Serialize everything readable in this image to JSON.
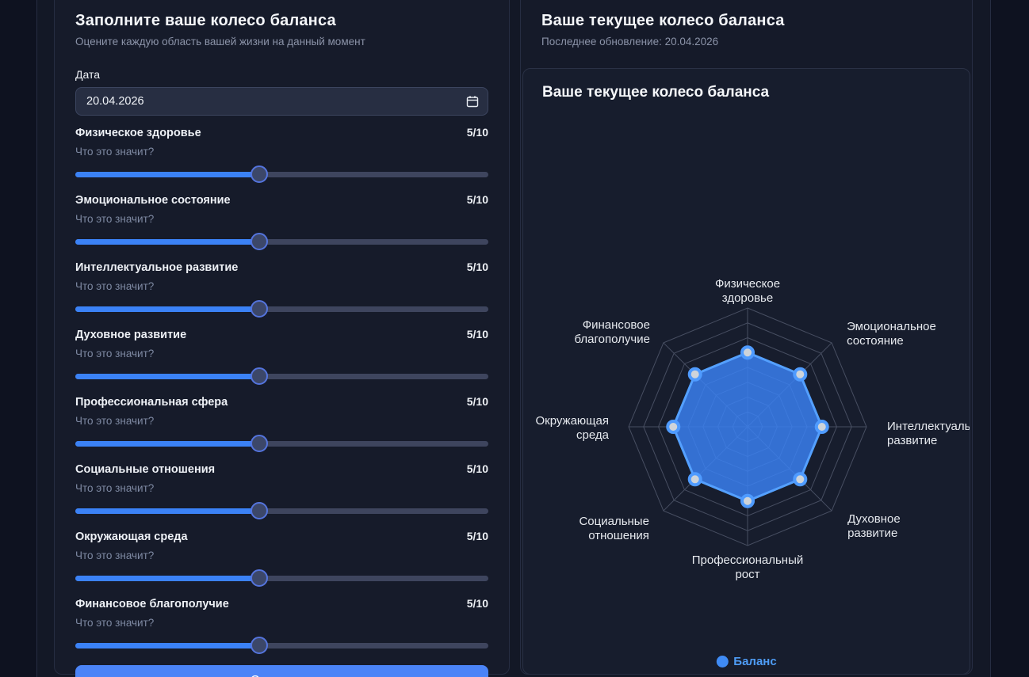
{
  "form": {
    "title": "Заполните ваше колесо баланса",
    "subtitle": "Оцените каждую область вашей жизни на данный момент",
    "date_label": "Дата",
    "date_value": "20.04.2026",
    "hint_label": "Что это значит?",
    "save_label": "Сохранить",
    "sliders": [
      {
        "label": "Физическое здоровье",
        "value": 5,
        "min": 1,
        "max": 10,
        "display": "5/10"
      },
      {
        "label": "Эмоциональное состояние",
        "value": 5,
        "min": 1,
        "max": 10,
        "display": "5/10"
      },
      {
        "label": "Интеллектуальное развитие",
        "value": 5,
        "min": 1,
        "max": 10,
        "display": "5/10"
      },
      {
        "label": "Духовное развитие",
        "value": 5,
        "min": 1,
        "max": 10,
        "display": "5/10"
      },
      {
        "label": "Профессиональная сфера",
        "value": 5,
        "min": 1,
        "max": 10,
        "display": "5/10"
      },
      {
        "label": "Социальные отношения",
        "value": 5,
        "min": 1,
        "max": 10,
        "display": "5/10"
      },
      {
        "label": "Окружающая среда",
        "value": 5,
        "min": 1,
        "max": 10,
        "display": "5/10"
      },
      {
        "label": "Финансовое благополучие",
        "value": 5,
        "min": 1,
        "max": 10,
        "display": "5/10"
      }
    ]
  },
  "panel": {
    "title": "Ваше текущее колесо баланса",
    "subtitle": "Последнее обновление: 20.04.2026",
    "chart_title": "Ваше текущее колесо баланса",
    "legend": "Баланс"
  },
  "chart_data": {
    "type": "radar",
    "title": "Ваше текущее колесо баланса",
    "categories": [
      "Физическое здоровье",
      "Эмоциональное состояние",
      "Интеллектуальное развитие",
      "Духовное развитие",
      "Профессиональный рост",
      "Социальные отношения",
      "Окружающая среда",
      "Финансовое благополучие"
    ],
    "series": [
      {
        "name": "Баланс",
        "values": [
          5,
          5,
          5,
          5,
          5,
          5,
          5,
          5
        ]
      }
    ],
    "axis": {
      "min": 0,
      "max": 8,
      "rings": 8,
      "grid": true,
      "tick_labels": false
    },
    "legend_position": "bottom",
    "colors": {
      "fill": "rgba(59,130,246,0.82)",
      "stroke": "#54a0ff",
      "point_fill": "#ced4da",
      "point_stroke": "#4f9bff",
      "grid": "#474e61",
      "label": "#e7eaef"
    }
  }
}
